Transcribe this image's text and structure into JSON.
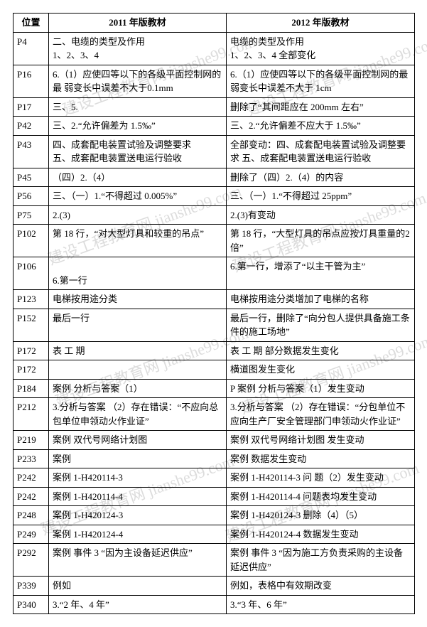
{
  "watermark_text": "建设工程教育网 jianshe99.com",
  "table": {
    "columns": [
      "位置",
      "2011 年版教材",
      "2012 年版教材"
    ],
    "col_widths_pct": [
      9,
      44,
      47
    ],
    "header_bold": true,
    "header_align": "center",
    "border_color": "#000000",
    "font_family": "SimSun",
    "font_size_pt": 10,
    "rows": [
      {
        "pos": "P4",
        "c2011": "二、电缆的类型及作用\n1、2、3、4",
        "c2012": "电缆的类型及作用\n1、2、3、4 全部变化"
      },
      {
        "pos": "P16",
        "c2011": "6.（1）应使四等以下的各级平面控制网的最 弱变长中误差不大于0.1mm",
        "c2012": "6.（1）应使四等以下的各级平面控制网的最弱变长中误差不大于 1cm"
      },
      {
        "pos": "P17",
        "c2011": "三、5.",
        "c2012": "删除了“其间距应在 200mm 左右”"
      },
      {
        "pos": "P42",
        "c2011": "三、2.“允许偏差为 1.5‰”",
        "c2012": "三、2.“允许偏差不应大于 1.5‰”"
      },
      {
        "pos": "P43",
        "c2011": "四、成套配电装置试验及调整要求\n五、成套配电装置送电运行验收",
        "c2012": "全部变动：四、成套配电装置试验及调整要求   五、成套配电装置送电运行验收"
      },
      {
        "pos": "P45",
        "c2011": "（四）2.（4）",
        "c2012": "删除了（四）2.（4）的内容"
      },
      {
        "pos": "P56",
        "c2011": "三、（一）1.“不得超过 0.005%”",
        "c2012": "三、（一）1.“不得超过 25ppm”"
      },
      {
        "pos": "P75",
        "c2011": "2.(3)",
        "c2012": "2.(3)有变动"
      },
      {
        "pos": "P102",
        "c2011": "第 18 行，“对大型灯具和较重的吊点”",
        "c2012": "第 18 行，“大型灯具的吊点应按灯具重量的2 倍”"
      },
      {
        "pos": "P106",
        "c2011": "\n6.第一行",
        "c2012": "6.第一行，增添了“以主干管为主”"
      },
      {
        "pos": "P123",
        "c2011": "电梯按用途分类",
        "c2012": "电梯按用途分类增加了电梯的名称"
      },
      {
        "pos": "P152",
        "c2011": "最后一行",
        "c2012": "最后一行，删除了“向分包人提供具备施工条件的施工场地”"
      },
      {
        "pos": "P172",
        "c2011": "表  工 期",
        "c2012": "表  工 期    部分数据发生变化"
      },
      {
        "pos": "P172",
        "c2011": "",
        "c2012": "横道图发生变化"
      },
      {
        "pos": "P184",
        "c2011": "案例  分析与答案（1）",
        "c2012": "P 案例  分析与答案（1）发生变动"
      },
      {
        "pos": "P212",
        "c2011": "3.分析与答案 （2）存在错误：“不应向总包单位申领动火作业证”",
        "c2012": "3.分析与答案 （2）存在错误：“分包单位不应向生产厂安全管理部门申领动火作业证”"
      },
      {
        "pos": "P219",
        "c2011": "案例  双代号网络计划图",
        "c2012": "案例  双代号网络计划图  发生变动"
      },
      {
        "pos": "P233",
        "c2011": "案例",
        "c2012": "案例  数据发生变动"
      },
      {
        "pos": "P242",
        "c2011": "案例 1-H420114-3",
        "c2012": "案例 1-H420114-3   问 题（2）发生变动"
      },
      {
        "pos": "P242",
        "c2011": "案例 1-H420114-4",
        "c2012": "案例 1-H420114-4 问题表均发生变动"
      },
      {
        "pos": "P248",
        "c2011": "案例 1-H420124-3",
        "c2012": "案例 1-H420124-3  删除（4）（5）"
      },
      {
        "pos": "P249",
        "c2011": "案例 1-H420124-4",
        "c2012": "案例 1-H420124-4  数据发生变动"
      },
      {
        "pos": "P292",
        "c2011": "案例  事件 3  “因为主设备延迟供应”",
        "c2012": "案例  事件 3   “因为施工方负责采购的主设备延迟供应”"
      },
      {
        "pos": "P339",
        "c2011": "例如",
        "c2012": "例如，表格中有效期改变"
      },
      {
        "pos": "P340",
        "c2011": "3.“2 年、4 年”",
        "c2012": "3.“3 年、6 年”"
      }
    ]
  },
  "style": {
    "page_bg": "#ffffff",
    "text_color": "#000000",
    "watermark_color": "#dcdcdc",
    "watermark_rotate_deg": -20,
    "watermark_font_size_pt": 16
  }
}
